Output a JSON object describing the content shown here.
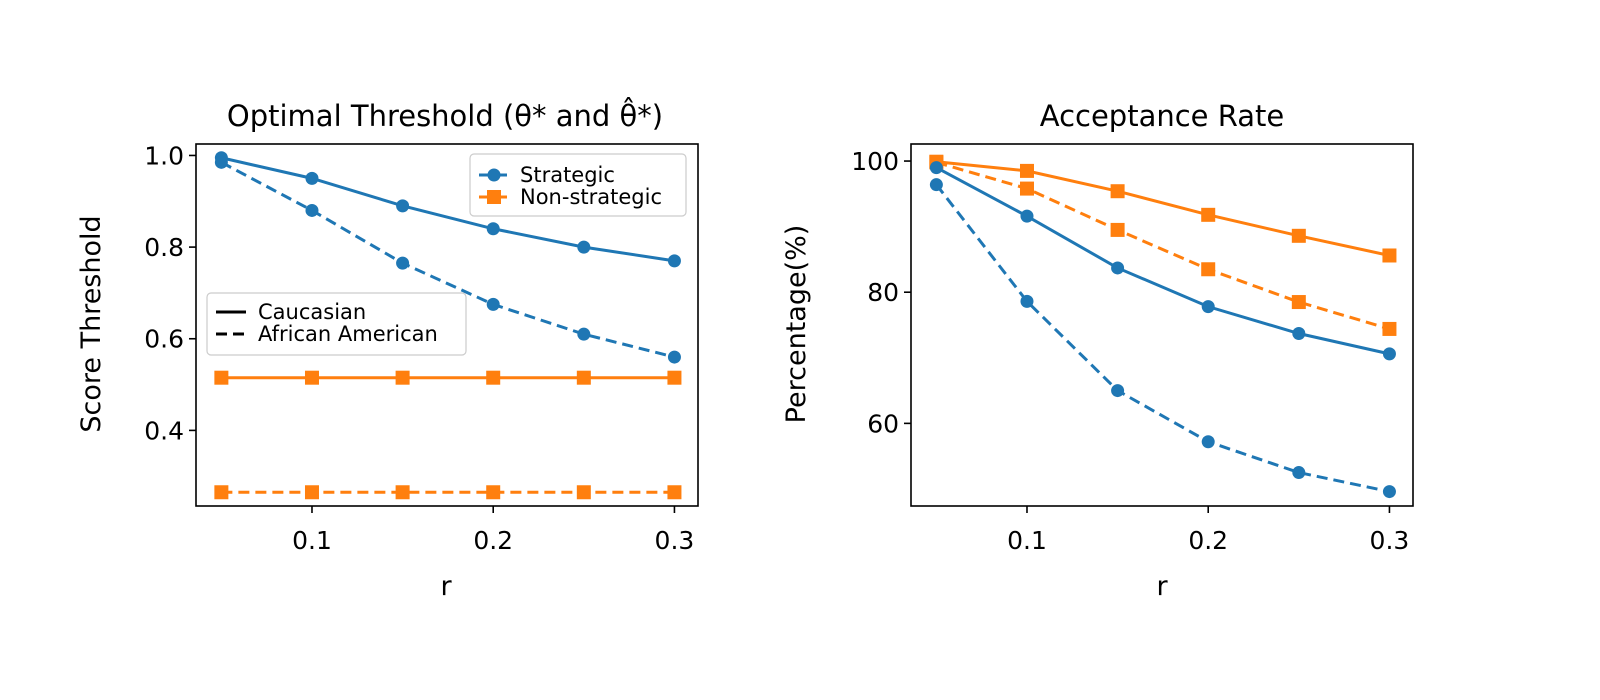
{
  "colors": {
    "strategic": "#1f77b4",
    "non_strategic": "#ff7f0e",
    "axis": "#000000"
  },
  "chart_data": [
    {
      "type": "line",
      "title": "Optimal Threshold (θ* and θ̂*)",
      "xlabel": "r",
      "ylabel": "Score Threshold",
      "x": [
        0.05,
        0.1,
        0.15,
        0.2,
        0.25,
        0.3
      ],
      "xlim": [
        0.036,
        0.313
      ],
      "ylim": [
        0.235,
        1.025
      ],
      "xticks": [
        0.1,
        0.2,
        0.3
      ],
      "xtick_labels": [
        "0.1",
        "0.2",
        "0.3"
      ],
      "yticks": [
        0.4,
        0.6,
        0.8,
        1.0
      ],
      "ytick_labels": [
        "0.4",
        "0.6",
        "0.8",
        "1.0"
      ],
      "grid": false,
      "series": [
        {
          "group": "Strategic",
          "population": "Caucasian",
          "style": "solid",
          "marker": "circle",
          "color": "#1f77b4",
          "values": [
            0.995,
            0.95,
            0.89,
            0.84,
            0.8,
            0.77
          ]
        },
        {
          "group": "Strategic",
          "population": "African American",
          "style": "dashed",
          "marker": "circle",
          "color": "#1f77b4",
          "values": [
            0.985,
            0.88,
            0.765,
            0.675,
            0.61,
            0.56
          ]
        },
        {
          "group": "Non-strategic",
          "population": "Caucasian",
          "style": "solid",
          "marker": "square",
          "color": "#ff7f0e",
          "values": [
            0.515,
            0.515,
            0.515,
            0.515,
            0.515,
            0.515
          ]
        },
        {
          "group": "Non-strategic",
          "population": "African American",
          "style": "dashed",
          "marker": "square",
          "color": "#ff7f0e",
          "values": [
            0.265,
            0.265,
            0.265,
            0.265,
            0.265,
            0.265
          ]
        }
      ],
      "legend_groups": {
        "placement": "upper-right",
        "entries": [
          {
            "label": "Strategic",
            "marker": "circle",
            "color": "#1f77b4"
          },
          {
            "label": "Non-strategic",
            "marker": "square",
            "color": "#ff7f0e"
          }
        ]
      },
      "legend_lines": {
        "placement": "center-left",
        "entries": [
          {
            "label": "Caucasian",
            "style": "solid"
          },
          {
            "label": "African American",
            "style": "dashed"
          }
        ]
      }
    },
    {
      "type": "line",
      "title": "Acceptance Rate",
      "xlabel": "r",
      "ylabel": "Percentage(%)",
      "x": [
        0.05,
        0.1,
        0.15,
        0.2,
        0.25,
        0.3
      ],
      "xlim": [
        0.036,
        0.313
      ],
      "ylim": [
        47.4,
        102.6
      ],
      "xticks": [
        0.1,
        0.2,
        0.3
      ],
      "xtick_labels": [
        "0.1",
        "0.2",
        "0.3"
      ],
      "yticks": [
        60,
        80,
        100
      ],
      "ytick_labels": [
        "60",
        "80",
        "100"
      ],
      "grid": false,
      "series": [
        {
          "group": "Non-strategic",
          "population": "Caucasian",
          "style": "solid",
          "marker": "square",
          "color": "#ff7f0e",
          "values": [
            99.9,
            98.5,
            95.4,
            91.8,
            88.6,
            85.6
          ]
        },
        {
          "group": "Non-strategic",
          "population": "African American",
          "style": "dashed",
          "marker": "square",
          "color": "#ff7f0e",
          "values": [
            99.8,
            95.8,
            89.5,
            83.5,
            78.5,
            74.4
          ]
        },
        {
          "group": "Strategic",
          "population": "Caucasian",
          "style": "solid",
          "marker": "circle",
          "color": "#1f77b4",
          "values": [
            99.0,
            91.6,
            83.7,
            77.8,
            73.7,
            70.6
          ]
        },
        {
          "group": "Strategic",
          "population": "African American",
          "style": "dashed",
          "marker": "circle",
          "color": "#1f77b4",
          "values": [
            96.4,
            78.6,
            65.0,
            57.2,
            52.5,
            49.6
          ]
        }
      ]
    }
  ]
}
